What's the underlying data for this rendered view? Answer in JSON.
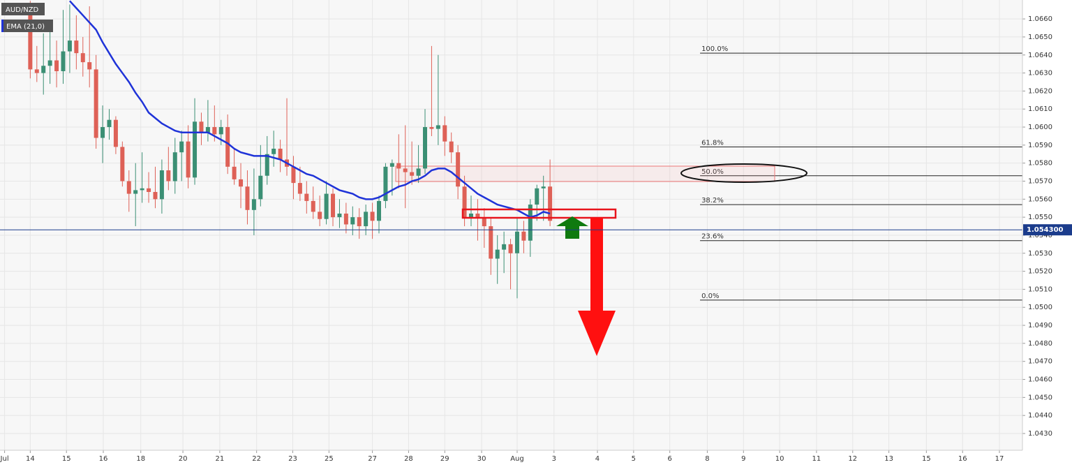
{
  "chart_data": {
    "type": "candlestick",
    "symbol": "AUD/NZD",
    "up_color": "#3b8f74",
    "down_color": "#de6157",
    "x": [
      0,
      1,
      2,
      3,
      4,
      5,
      6,
      7,
      8,
      9,
      10,
      11,
      12,
      13,
      14,
      15,
      16,
      17,
      18,
      19,
      20,
      21,
      22,
      23,
      24,
      25,
      26,
      27,
      28,
      29,
      30,
      31,
      32,
      33,
      34,
      35,
      36,
      37,
      38,
      39,
      40,
      41,
      42,
      43,
      44,
      45,
      46,
      47,
      48,
      49,
      50,
      51,
      52,
      53,
      54,
      55,
      56,
      57,
      58,
      59,
      60,
      61,
      62,
      63,
      64,
      65,
      66,
      67,
      68,
      69,
      70,
      71,
      72,
      73,
      74,
      75,
      76,
      77,
      78,
      79
    ],
    "open": [
      1.0668,
      1.0632,
      1.063,
      1.0634,
      1.0637,
      1.0631,
      1.0642,
      1.0648,
      1.0641,
      1.0636,
      1.0632,
      1.0594,
      1.06,
      1.0604,
      1.0589,
      1.057,
      1.0563,
      1.0565,
      1.0566,
      1.0564,
      1.056,
      1.0576,
      1.057,
      1.0586,
      1.0592,
      1.0572,
      1.0603,
      1.0597,
      1.06,
      1.0596,
      1.06,
      1.0578,
      1.0571,
      1.0567,
      1.0554,
      1.056,
      1.0573,
      1.0585,
      1.0588,
      1.0582,
      1.0578,
      1.0569,
      1.0563,
      1.0559,
      1.0553,
      1.0549,
      1.0563,
      1.055,
      1.0552,
      1.0546,
      1.055,
      1.0545,
      1.0553,
      1.0548,
      1.0559,
      1.0578,
      1.058,
      1.0577,
      1.0575,
      1.0573,
      1.0577,
      1.06,
      1.0599,
      1.0601,
      1.0592,
      1.0586,
      1.0567,
      1.055,
      1.0552,
      1.055,
      1.0545,
      1.0527,
      1.0532,
      1.0535,
      1.053,
      1.0542,
      1.0537,
      1.0557,
      1.0566,
      1.0567
    ],
    "high": [
      1.067,
      1.0645,
      1.0652,
      1.0656,
      1.0648,
      1.0665,
      1.0668,
      1.0662,
      1.065,
      1.0667,
      1.064,
      1.0612,
      1.061,
      1.0606,
      1.0592,
      1.0576,
      1.058,
      1.0586,
      1.0575,
      1.0578,
      1.0582,
      1.0589,
      1.0594,
      1.0598,
      1.0601,
      1.0616,
      1.0608,
      1.0615,
      1.0612,
      1.0604,
      1.0607,
      1.0588,
      1.058,
      1.0576,
      1.0577,
      1.059,
      1.0595,
      1.0598,
      1.0593,
      1.0616,
      1.0584,
      1.0578,
      1.057,
      1.0567,
      1.0562,
      1.057,
      1.0566,
      1.056,
      1.0558,
      1.0556,
      1.0555,
      1.0557,
      1.0558,
      1.0562,
      1.058,
      1.0582,
      1.0596,
      1.0601,
      1.0592,
      1.059,
      1.061,
      1.0645,
      1.064,
      1.0606,
      1.0597,
      1.059,
      1.0573,
      1.0562,
      1.056,
      1.0555,
      1.055,
      1.054,
      1.0542,
      1.0538,
      1.055,
      1.0548,
      1.056,
      1.0568,
      1.0573,
      1.0582
    ],
    "low": [
      1.0627,
      1.0625,
      1.0618,
      1.0624,
      1.0622,
      1.0624,
      1.063,
      1.0632,
      1.0628,
      1.0622,
      1.0588,
      1.058,
      1.0593,
      1.0585,
      1.0567,
      1.0553,
      1.0545,
      1.0558,
      1.0558,
      1.0555,
      1.0552,
      1.0565,
      1.0563,
      1.057,
      1.0566,
      1.0568,
      1.059,
      1.0592,
      1.0592,
      1.059,
      1.0574,
      1.0568,
      1.0555,
      1.0546,
      1.054,
      1.0556,
      1.0568,
      1.0578,
      1.0575,
      1.0573,
      1.056,
      1.0559,
      1.0552,
      1.0549,
      1.0545,
      1.0546,
      1.0545,
      1.0544,
      1.0541,
      1.054,
      1.0538,
      1.054,
      1.0538,
      1.0541,
      1.0555,
      1.0562,
      1.0566,
      1.0555,
      1.0568,
      1.0569,
      1.0574,
      1.0595,
      1.059,
      1.0584,
      1.058,
      1.056,
      1.0545,
      1.0545,
      1.0537,
      1.0533,
      1.0518,
      1.0513,
      1.0519,
      1.051,
      1.0505,
      1.053,
      1.0528,
      1.0548,
      1.0548,
      1.0545
    ],
    "close": [
      1.0632,
      1.063,
      1.0634,
      1.0637,
      1.0631,
      1.0642,
      1.0648,
      1.0641,
      1.0636,
      1.0632,
      1.0594,
      1.06,
      1.0604,
      1.0589,
      1.057,
      1.0563,
      1.0565,
      1.0566,
      1.0564,
      1.056,
      1.0576,
      1.057,
      1.0586,
      1.0592,
      1.0572,
      1.0603,
      1.0597,
      1.06,
      1.0596,
      1.06,
      1.0578,
      1.0571,
      1.0567,
      1.0554,
      1.056,
      1.0573,
      1.0585,
      1.0588,
      1.0582,
      1.0578,
      1.0569,
      1.0563,
      1.0559,
      1.0553,
      1.0549,
      1.0563,
      1.055,
      1.0552,
      1.0546,
      1.055,
      1.0545,
      1.0553,
      1.0548,
      1.0559,
      1.0578,
      1.058,
      1.0577,
      1.0575,
      1.0573,
      1.0577,
      1.06,
      1.0599,
      1.0601,
      1.0592,
      1.0586,
      1.0567,
      1.055,
      1.0552,
      1.055,
      1.0545,
      1.0527,
      1.0532,
      1.0535,
      1.053,
      1.0542,
      1.0537,
      1.0557,
      1.0566,
      1.0567,
      1.0548
    ],
    "ema": {
      "name": "EMA (21,0)",
      "color": "#1f33d8",
      "values": [
        null,
        null,
        null,
        null,
        null,
        null,
        1.067,
        1.0666,
        1.0662,
        1.0658,
        1.0654,
        1.0647,
        1.0641,
        1.0635,
        1.063,
        1.0625,
        1.0619,
        1.0614,
        1.0608,
        1.0605,
        1.0602,
        1.06,
        1.0598,
        1.0597,
        1.0597,
        1.0597,
        1.0597,
        1.0597,
        1.0595,
        1.0593,
        1.0591,
        1.0588,
        1.0586,
        1.0585,
        1.0584,
        1.0584,
        1.0584,
        1.0583,
        1.0582,
        1.058,
        1.0578,
        1.0576,
        1.0574,
        1.0573,
        1.0571,
        1.0569,
        1.0567,
        1.0565,
        1.0564,
        1.0563,
        1.0561,
        1.056,
        1.056,
        1.0561,
        1.0563,
        1.0565,
        1.0567,
        1.0568,
        1.057,
        1.0571,
        1.0573,
        1.0576,
        1.0577,
        1.0577,
        1.0575,
        1.0572,
        1.0569,
        1.0566,
        1.0563,
        1.0561,
        1.0559,
        1.0557,
        1.0556,
        1.0555,
        1.0554,
        1.0552,
        1.055,
        1.0551,
        1.0553,
        1.0552
      ]
    },
    "fib_start": 101.8,
    "fib_levels": [
      {
        "label": "100.0%",
        "price": 1.0641
      },
      {
        "label": "61.8%",
        "price": 1.0589
      },
      {
        "label": "50.0%",
        "price": 1.0573
      },
      {
        "label": "38.2%",
        "price": 1.0557
      },
      {
        "label": "23.6%",
        "price": 1.0537
      },
      {
        "label": "0.0%",
        "price": 1.0504
      }
    ],
    "last_price": {
      "value": 1.0543,
      "label": "1.054300"
    },
    "xlim": [
      -4.6,
      150.8
    ],
    "ylim": [
      1.04207,
      1.06705
    ],
    "grid": true,
    "xticks": [
      {
        "value": -3.9,
        "label": "Jul"
      },
      {
        "value": 0,
        "label": "14"
      },
      {
        "value": 5.5,
        "label": "15"
      },
      {
        "value": 11.1,
        "label": "16"
      },
      {
        "value": 16.8,
        "label": "18"
      },
      {
        "value": 23.2,
        "label": "20"
      },
      {
        "value": 28.8,
        "label": "21"
      },
      {
        "value": 34.4,
        "label": "22"
      },
      {
        "value": 39.9,
        "label": "23"
      },
      {
        "value": 45.4,
        "label": "25"
      },
      {
        "value": 52.0,
        "label": "27"
      },
      {
        "value": 57.5,
        "label": "28"
      },
      {
        "value": 63.0,
        "label": "29"
      },
      {
        "value": 68.6,
        "label": "30"
      },
      {
        "value": 74.0,
        "label": "Aug"
      },
      {
        "value": 79.6,
        "label": "3"
      },
      {
        "value": 86.2,
        "label": "4"
      },
      {
        "value": 91.7,
        "label": "5"
      },
      {
        "value": 97.2,
        "label": "6"
      },
      {
        "value": 102.9,
        "label": "8"
      },
      {
        "value": 108.4,
        "label": "9"
      },
      {
        "value": 113.9,
        "label": "10"
      },
      {
        "value": 119.5,
        "label": "11"
      },
      {
        "value": 125.0,
        "label": "12"
      },
      {
        "value": 130.5,
        "label": "13"
      },
      {
        "value": 136.2,
        "label": "15"
      },
      {
        "value": 141.7,
        "label": "16"
      },
      {
        "value": 147.3,
        "label": "17"
      }
    ],
    "yticks": [
      {
        "value": 1.043,
        "label": "1.0430"
      },
      {
        "value": 1.044,
        "label": "1.0440"
      },
      {
        "value": 1.045,
        "label": "1.0450"
      },
      {
        "value": 1.046,
        "label": "1.0460"
      },
      {
        "value": 1.047,
        "label": "1.0470"
      },
      {
        "value": 1.048,
        "label": "1.0480"
      },
      {
        "value": 1.049,
        "label": "1.0490"
      },
      {
        "value": 1.05,
        "label": "1.0500"
      },
      {
        "value": 1.051,
        "label": "1.0510"
      },
      {
        "value": 1.052,
        "label": "1.0520"
      },
      {
        "value": 1.053,
        "label": "1.0530"
      },
      {
        "value": 1.054,
        "label": "1.0540"
      },
      {
        "value": 1.055,
        "label": "1.0550"
      },
      {
        "value": 1.056,
        "label": "1.0560"
      },
      {
        "value": 1.057,
        "label": "1.0570"
      },
      {
        "value": 1.058,
        "label": "1.0580"
      },
      {
        "value": 1.059,
        "label": "1.0590"
      },
      {
        "value": 1.06,
        "label": "1.0600"
      },
      {
        "value": 1.061,
        "label": "1.0610"
      },
      {
        "value": 1.062,
        "label": "1.0620"
      },
      {
        "value": 1.063,
        "label": "1.0630"
      },
      {
        "value": 1.064,
        "label": "1.0640"
      },
      {
        "value": 1.065,
        "label": "1.0650"
      },
      {
        "value": 1.066,
        "label": "1.0660"
      }
    ]
  }
}
